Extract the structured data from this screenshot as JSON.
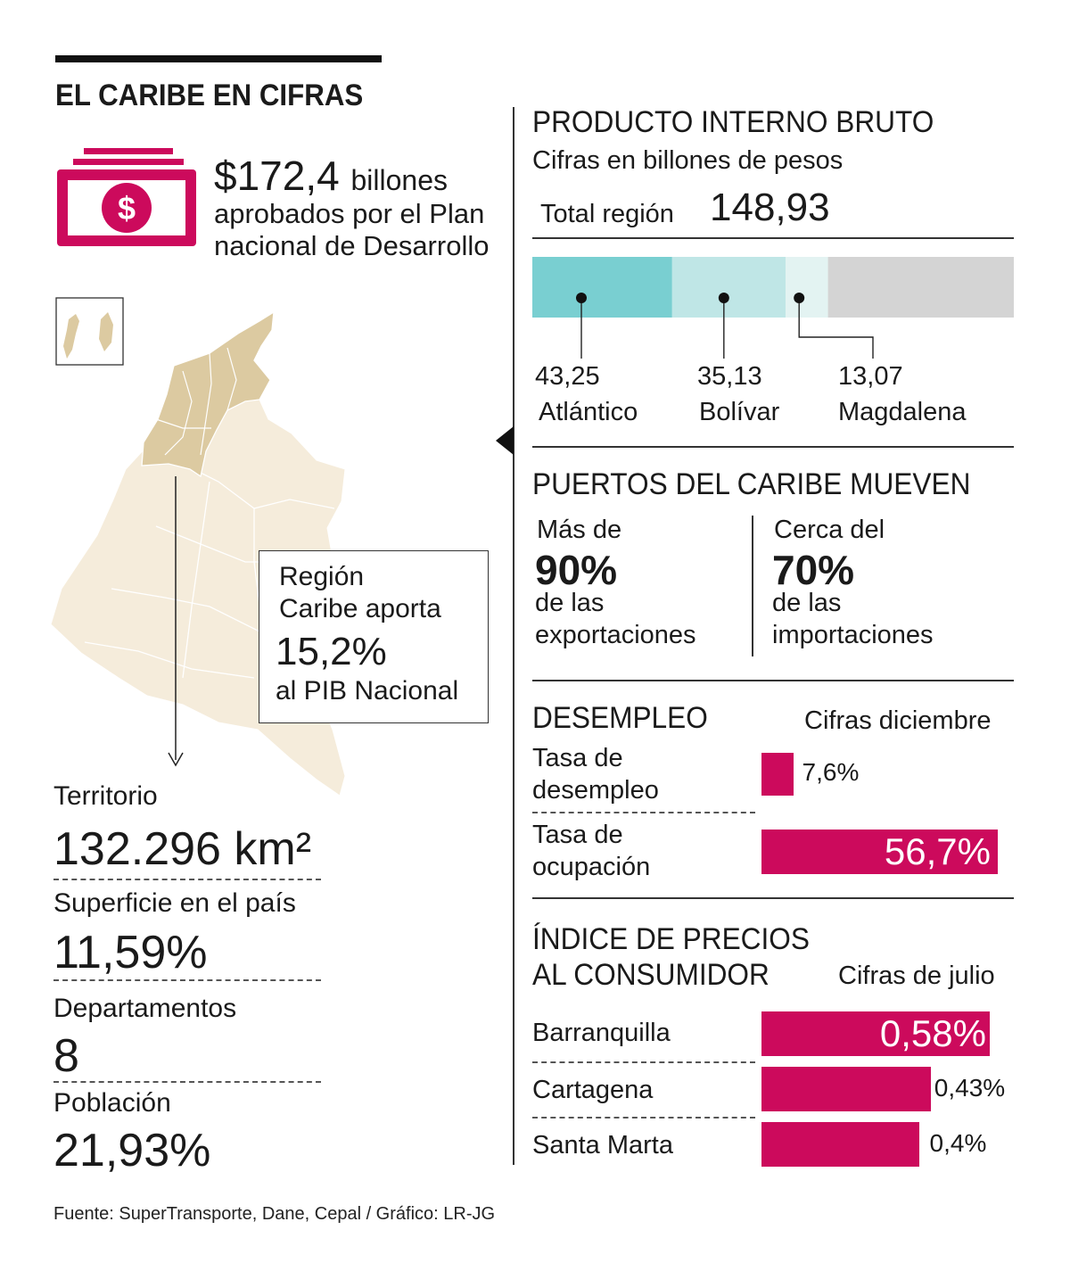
{
  "header": {
    "title": "EL CARIBE EN CIFRAS"
  },
  "plan": {
    "amount": "$172,4",
    "unit": "billones",
    "line1": "aprobados por el Plan",
    "line2": "nacional de Desarrollo"
  },
  "callout": {
    "line1": "Región",
    "line2": "Caribe aporta",
    "value": "15,2%",
    "line3": "al PIB Nacional"
  },
  "stats": [
    {
      "label": "Territorio",
      "value": "132.296 km²"
    },
    {
      "label": "Superficie en el país",
      "value": "11,59%"
    },
    {
      "label": "Departamentos",
      "value": "8"
    },
    {
      "label": "Población",
      "value": "21,93%"
    }
  ],
  "pib": {
    "title": "PRODUCTO INTERNO BRUTO",
    "subtitle": "Cifras en billones de pesos",
    "total_label": "Total región",
    "total_value": "148,93"
  },
  "ports": {
    "title": "PUERTOS DEL CARIBE MUEVEN",
    "left": {
      "pre": "Más de",
      "value": "90%",
      "post1": "de las",
      "post2": "exportaciones"
    },
    "right": {
      "pre": "Cerca del",
      "value": "70%",
      "post1": "de las",
      "post2": "importaciones"
    }
  },
  "unemployment": {
    "title": "DESEMPLEO",
    "note": "Cifras diciembre",
    "rows": [
      {
        "label1": "Tasa de",
        "label2": "desempleo",
        "display": "7,6%"
      },
      {
        "label1": "Tasa de",
        "label2": "ocupación",
        "display": "56,7%"
      }
    ]
  },
  "ipc": {
    "title1": "ÍNDICE DE PRECIOS",
    "title2": "AL CONSUMIDOR",
    "note": "Cifras de julio",
    "rows": [
      {
        "label": "Barranquilla",
        "display": "0,58%"
      },
      {
        "label": "Cartagena",
        "display": "0,43%"
      },
      {
        "label": "Santa Marta",
        "display": "0,4%"
      }
    ]
  },
  "source": "Fuente: SuperTransporte, Dane, Cepal / Gráfico: LR-JG",
  "colors": {
    "accent": "#cc0a5c",
    "teal_dark": "#79cfd1",
    "teal_mid": "#bfe6e6",
    "teal_light": "#e3f3f2",
    "gray": "#d4d4d4",
    "map_base": "#f5ecdb",
    "map_region": "#dccaa1"
  },
  "chart_data": [
    {
      "type": "bar",
      "title": "PRODUCTO INTERNO BRUTO",
      "subtitle": "Cifras en billones de pesos",
      "orientation": "stacked-horizontal",
      "categories": [
        "Atlántico",
        "Bolívar",
        "Magdalena"
      ],
      "values": [
        43.25,
        35.13,
        13.07
      ],
      "labels": [
        "43,25",
        "35,13",
        "13,07"
      ],
      "total": 148.93
    },
    {
      "type": "bar",
      "title": "DESEMPLEO",
      "orientation": "horizontal",
      "categories": [
        "Tasa de desempleo",
        "Tasa de ocupación"
      ],
      "values": [
        7.6,
        56.7
      ]
    },
    {
      "type": "bar",
      "title": "ÍNDICE DE PRECIOS AL CONSUMIDOR",
      "orientation": "horizontal",
      "categories": [
        "Barranquilla",
        "Cartagena",
        "Santa Marta"
      ],
      "values": [
        0.58,
        0.43,
        0.4
      ]
    }
  ]
}
